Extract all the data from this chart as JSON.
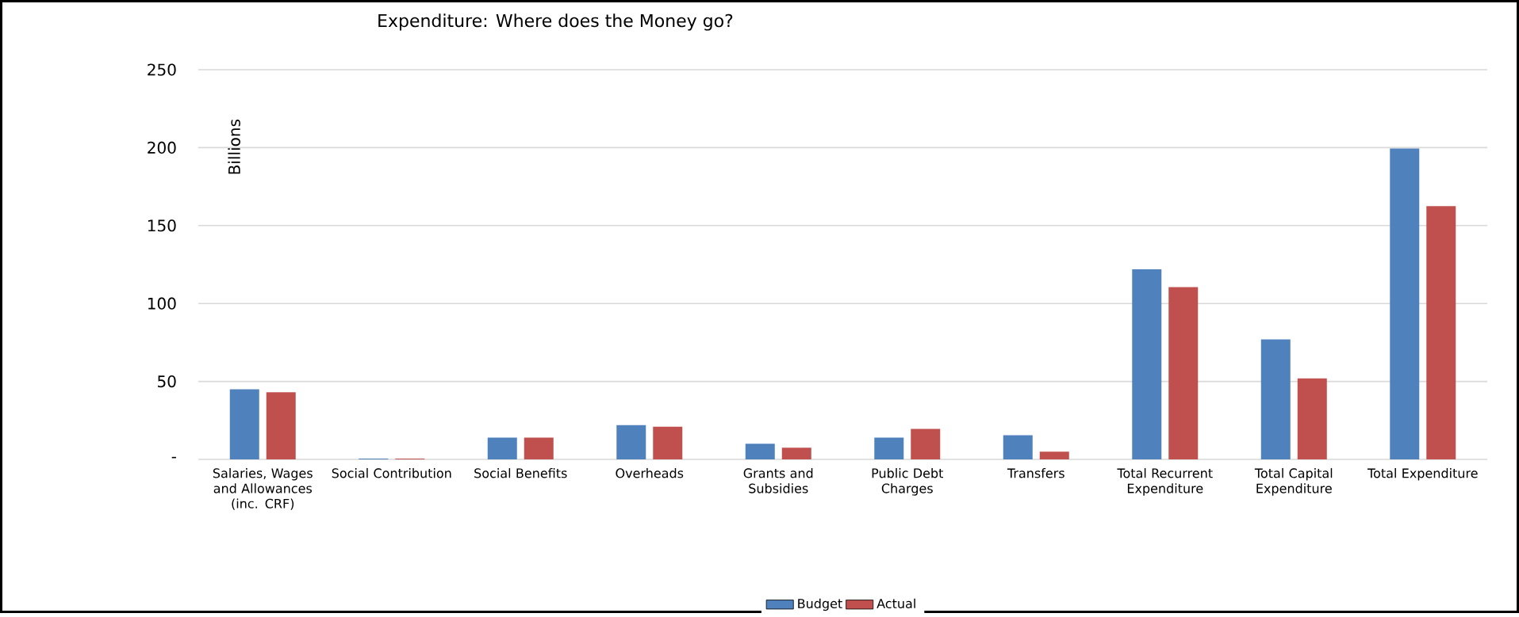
{
  "chart_data": {
    "type": "bar",
    "title": "Expenditure: Where does the Money go?",
    "ylabel": "Billions",
    "categories": [
      "Salaries, Wages and Allowances (inc. CRF)",
      "Social Contribution",
      "Social Benefits",
      "Overheads",
      "Grants and Subsidies",
      "Public Debt Charges",
      "Transfers",
      "Total Recurrent Expenditure",
      "Total Capital Expenditure",
      "Total Expenditure"
    ],
    "series": [
      {
        "name": "Budget",
        "color": "#4f81bd",
        "values": [
          45,
          0.5,
          14,
          22,
          10,
          14,
          15.5,
          122,
          77,
          199.5
        ]
      },
      {
        "name": "Actual",
        "color": "#c0504d",
        "values": [
          43,
          0.5,
          14,
          21,
          7.5,
          19.5,
          5,
          110.5,
          52,
          162.5
        ]
      }
    ],
    "ylim": [
      0,
      250
    ],
    "yticks": [
      {
        "value": 0,
        "label": "-"
      },
      50,
      100,
      150,
      200,
      250
    ],
    "grid": "y",
    "legend": "bottom"
  }
}
